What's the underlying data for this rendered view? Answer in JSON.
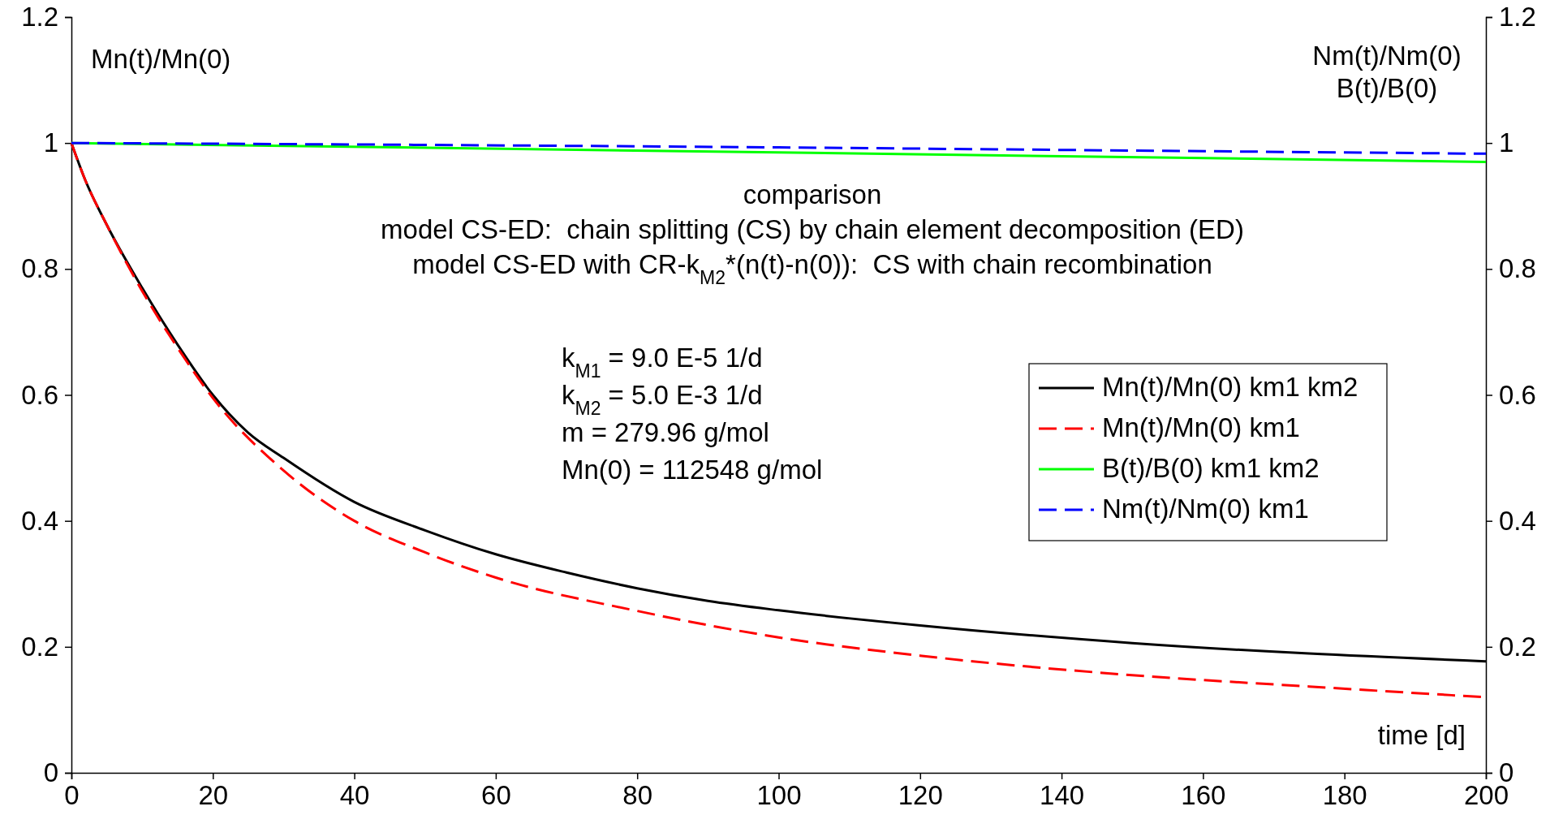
{
  "chart_data": {
    "type": "line",
    "xlabel": "time [d]",
    "ylabel": "Mn(t)/Mn(0)",
    "y2label": "Nm(t)/Nm(0)\nB(t)/B(0)",
    "xlim": [
      0,
      200
    ],
    "xticks": [
      0,
      20,
      40,
      60,
      80,
      100,
      120,
      140,
      160,
      180,
      200
    ],
    "ylim": [
      0,
      1.2
    ],
    "yticks": [
      0,
      0.2,
      0.4,
      0.6,
      0.8,
      1,
      1.2
    ],
    "y2lim": [
      0,
      1.2
    ],
    "y2ticks": [
      0,
      0.2,
      0.4,
      0.6,
      0.8,
      1,
      1.2
    ],
    "grid": false,
    "legend": "right",
    "marker": "none",
    "series": [
      {
        "name": "Mn(t)/Mn(0) km1 km2",
        "color": "#000000",
        "line_style": "solid",
        "x": [
          0,
          2,
          5,
          10,
          15,
          20,
          25,
          30,
          40,
          50,
          60,
          70,
          80,
          90,
          100,
          120,
          150,
          200
        ],
        "values": [
          1,
          0.94,
          0.87,
          0.77,
          0.68,
          0.6,
          0.54,
          0.5,
          0.43,
          0.385,
          0.347,
          0.318,
          0.293,
          0.273,
          0.258,
          0.234,
          0.206,
          0.177
        ]
      },
      {
        "name": "Mn(t)/Mn(0) km1",
        "color": "#ff0000",
        "line_style": "dashed",
        "x": [
          0,
          2,
          5,
          10,
          15,
          20,
          30,
          40,
          50,
          60,
          80,
          100,
          120,
          150,
          175,
          200
        ],
        "values": [
          1,
          0.94,
          0.87,
          0.765,
          0.675,
          0.595,
          0.48,
          0.4,
          0.35,
          0.31,
          0.257,
          0.215,
          0.186,
          0.155,
          0.137,
          0.12
        ]
      },
      {
        "name": "B(t)/B(0) km1 km2",
        "color": "#00ff00",
        "line_style": "solid",
        "x": [
          0,
          200
        ],
        "values": [
          1,
          0.97
        ]
      },
      {
        "name": "Nm(t)/Nm(0) km1",
        "color": "#0000ff",
        "line_style": "dashed",
        "x": [
          0,
          50,
          100,
          150,
          200
        ],
        "values": [
          1,
          0.997,
          0.993,
          0.988,
          0.983
        ]
      }
    ],
    "annotations": [
      "comparison",
      "model CS-ED:  chain splitting (CS) by chain element decomposition (ED)",
      "model CS-ED with CR-k$_{M2}$*(n(t)-n(0)):  CS with chain recombination",
      "k$_{M1}$ = 9.0 E-5 1/d",
      "k$_{M2}$ = 5.0 E-3 1/d",
      "m = 279.96 g/mol",
      "Mn(0) = 112548 g/mol"
    ]
  }
}
